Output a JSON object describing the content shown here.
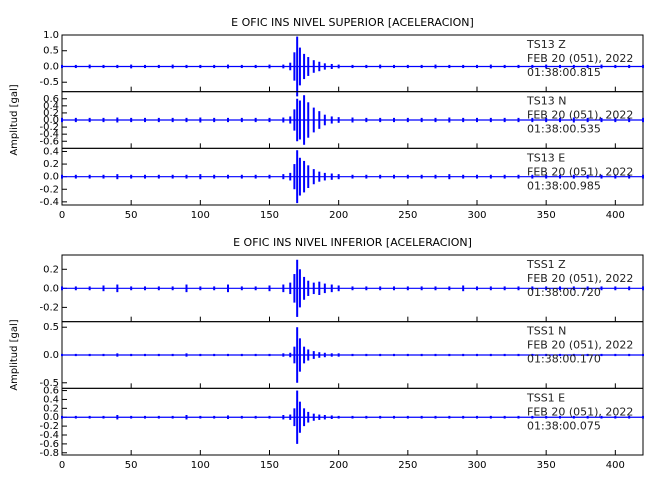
{
  "chart_data": [
    {
      "type": "waveform",
      "title": "E OFIC INS NIVEL SUPERIOR [ACELERACION]",
      "y_label": "Amplitud [gal]",
      "xlim": [
        0,
        420
      ],
      "xticks": [
        0,
        50,
        100,
        150,
        200,
        250,
        300,
        350,
        400
      ],
      "x": [
        0,
        10,
        20,
        30,
        40,
        50,
        60,
        70,
        80,
        90,
        100,
        110,
        120,
        130,
        140,
        150,
        160,
        165,
        168,
        170,
        172,
        175,
        178,
        182,
        186,
        190,
        195,
        200,
        210,
        220,
        230,
        240,
        250,
        260,
        270,
        280,
        290,
        300,
        310,
        320,
        330,
        340,
        350,
        360,
        370,
        380,
        390,
        400,
        410,
        420
      ],
      "traces": [
        {
          "station": "TS13   Z",
          "date": "FEB 20 (051), 2022",
          "time": "01:38:00.815",
          "color": "#0000ff",
          "ylim": [
            -0.8,
            1.0
          ],
          "yticks": [
            -0.5,
            {
              "value": 0,
              "label": "0.0"
            },
            0.5,
            {
              "value": 1,
              "label": "1.0"
            }
          ],
          "values": [
            0.05,
            0.05,
            0.06,
            0.05,
            0.05,
            0.06,
            0.05,
            0.05,
            0.06,
            0.05,
            0.05,
            0.05,
            0.06,
            0.05,
            0.05,
            0.06,
            0.06,
            0.12,
            0.45,
            0.95,
            0.6,
            0.4,
            0.3,
            0.2,
            0.15,
            0.1,
            0.08,
            0.06,
            0.05,
            0.05,
            0.06,
            0.05,
            0.05,
            0.05,
            0.06,
            0.05,
            0.05,
            0.05,
            0.06,
            0.05,
            0.05,
            0.05,
            0.06,
            0.05,
            0.05,
            0.05,
            0.06,
            0.05,
            0.05,
            0.05
          ]
        },
        {
          "station": "TS13   N",
          "date": "FEB 20 (051), 2022",
          "time": "01:38:00.535",
          "color": "#0000ff",
          "ylim": [
            -0.8,
            0.8
          ],
          "yticks": [
            -0.6,
            -0.4,
            -0.2,
            {
              "value": 0,
              "label": "0.0"
            },
            0.2,
            0.4,
            0.6
          ],
          "values": [
            0.06,
            0.06,
            0.06,
            0.06,
            0.07,
            0.06,
            0.06,
            0.06,
            0.06,
            0.06,
            0.07,
            0.06,
            0.06,
            0.06,
            0.06,
            0.06,
            0.07,
            0.1,
            0.3,
            0.6,
            0.55,
            0.7,
            0.5,
            0.35,
            0.25,
            0.15,
            0.1,
            0.08,
            0.07,
            0.06,
            0.06,
            0.06,
            0.06,
            0.06,
            0.06,
            0.07,
            0.06,
            0.06,
            0.06,
            0.06,
            0.06,
            0.06,
            0.06,
            0.06,
            0.07,
            0.06,
            0.06,
            0.06,
            0.06,
            0.06
          ]
        },
        {
          "station": "TS13   E",
          "date": "FEB 20 (051), 2022",
          "time": "01:38:00.985",
          "color": "#0000ff",
          "ylim": [
            -0.45,
            0.45
          ],
          "yticks": [
            -0.4,
            -0.2,
            {
              "value": 0,
              "label": "0.0"
            },
            0.2,
            0.4
          ],
          "values": [
            0.03,
            0.03,
            0.03,
            0.03,
            0.04,
            0.03,
            0.03,
            0.03,
            0.03,
            0.03,
            0.04,
            0.03,
            0.03,
            0.03,
            0.03,
            0.03,
            0.04,
            0.06,
            0.2,
            0.42,
            0.3,
            0.25,
            0.18,
            0.12,
            0.08,
            0.06,
            0.05,
            0.04,
            0.03,
            0.03,
            0.03,
            0.03,
            0.03,
            0.03,
            0.03,
            0.04,
            0.03,
            0.03,
            0.03,
            0.03,
            0.03,
            0.03,
            0.03,
            0.03,
            0.03,
            0.03,
            0.03,
            0.03,
            0.03,
            0.03
          ]
        }
      ]
    },
    {
      "type": "waveform",
      "title": "E OFIC INS NIVEL INFERIOR [ACELERACION]",
      "y_label": "Amplitud [gal]",
      "xlim": [
        0,
        420
      ],
      "xticks": [
        0,
        50,
        100,
        150,
        200,
        250,
        300,
        350,
        400
      ],
      "x": [
        0,
        10,
        20,
        30,
        40,
        50,
        60,
        70,
        80,
        90,
        100,
        110,
        120,
        130,
        140,
        150,
        160,
        165,
        168,
        170,
        172,
        175,
        178,
        182,
        186,
        190,
        195,
        200,
        210,
        220,
        230,
        240,
        250,
        260,
        270,
        280,
        290,
        300,
        310,
        320,
        330,
        340,
        350,
        360,
        370,
        380,
        390,
        400,
        410,
        420
      ],
      "traces": [
        {
          "station": "TSS1   Z",
          "date": "FEB 20 (051), 2022",
          "time": "01:38:00.720",
          "color": "#0000ff",
          "ylim": [
            -0.35,
            0.35
          ],
          "yticks": [
            -0.2,
            {
              "value": 0,
              "label": "0.0"
            },
            0.2
          ],
          "values": [
            0.02,
            0.02,
            0.02,
            0.03,
            0.04,
            0.02,
            0.02,
            0.02,
            0.02,
            0.04,
            0.02,
            0.02,
            0.04,
            0.02,
            0.02,
            0.03,
            0.04,
            0.06,
            0.15,
            0.3,
            0.2,
            0.12,
            0.08,
            0.06,
            0.07,
            0.05,
            0.04,
            0.03,
            0.02,
            0.02,
            0.02,
            0.02,
            0.02,
            0.02,
            0.02,
            0.02,
            0.03,
            0.02,
            0.02,
            0.02,
            0.02,
            0.02,
            0.02,
            0.02,
            0.02,
            0.02,
            0.02,
            0.02,
            0.02,
            0.02
          ]
        },
        {
          "station": "TSS1   N",
          "date": "FEB 20 (051), 2022",
          "time": "01:38:00.170",
          "color": "#0000ff",
          "ylim": [
            -0.6,
            0.6
          ],
          "yticks": [
            -0.5,
            {
              "value": 0,
              "label": "0.0"
            },
            0.5
          ],
          "values": [
            0.02,
            0.02,
            0.02,
            0.02,
            0.03,
            0.02,
            0.02,
            0.02,
            0.02,
            0.03,
            0.02,
            0.02,
            0.02,
            0.02,
            0.02,
            0.02,
            0.03,
            0.04,
            0.15,
            0.5,
            0.3,
            0.15,
            0.1,
            0.07,
            0.05,
            0.04,
            0.03,
            0.03,
            0.02,
            0.02,
            0.02,
            0.02,
            0.02,
            0.02,
            0.02,
            0.02,
            0.02,
            0.02,
            0.02,
            0.02,
            0.02,
            0.02,
            0.02,
            0.02,
            0.02,
            0.02,
            0.02,
            0.02,
            0.02,
            0.02
          ]
        },
        {
          "station": "TSS1   E",
          "date": "FEB 20 (051), 2022",
          "time": "01:38:00.075",
          "color": "#0000ff",
          "ylim": [
            -0.85,
            0.65
          ],
          "yticks": [
            -0.8,
            -0.6,
            -0.4,
            -0.2,
            {
              "value": 0,
              "label": "0.0"
            },
            0.2,
            0.4,
            0.6
          ],
          "values": [
            0.03,
            0.03,
            0.03,
            0.03,
            0.05,
            0.03,
            0.03,
            0.03,
            0.03,
            0.05,
            0.03,
            0.03,
            0.04,
            0.03,
            0.03,
            0.03,
            0.05,
            0.06,
            0.2,
            0.6,
            0.35,
            0.2,
            0.12,
            0.08,
            0.06,
            0.05,
            0.04,
            0.03,
            0.03,
            0.03,
            0.03,
            0.03,
            0.03,
            0.03,
            0.03,
            0.03,
            0.03,
            0.03,
            0.03,
            0.03,
            0.03,
            0.03,
            0.03,
            0.03,
            0.03,
            0.03,
            0.03,
            0.03,
            0.03,
            0.03
          ]
        }
      ]
    }
  ]
}
